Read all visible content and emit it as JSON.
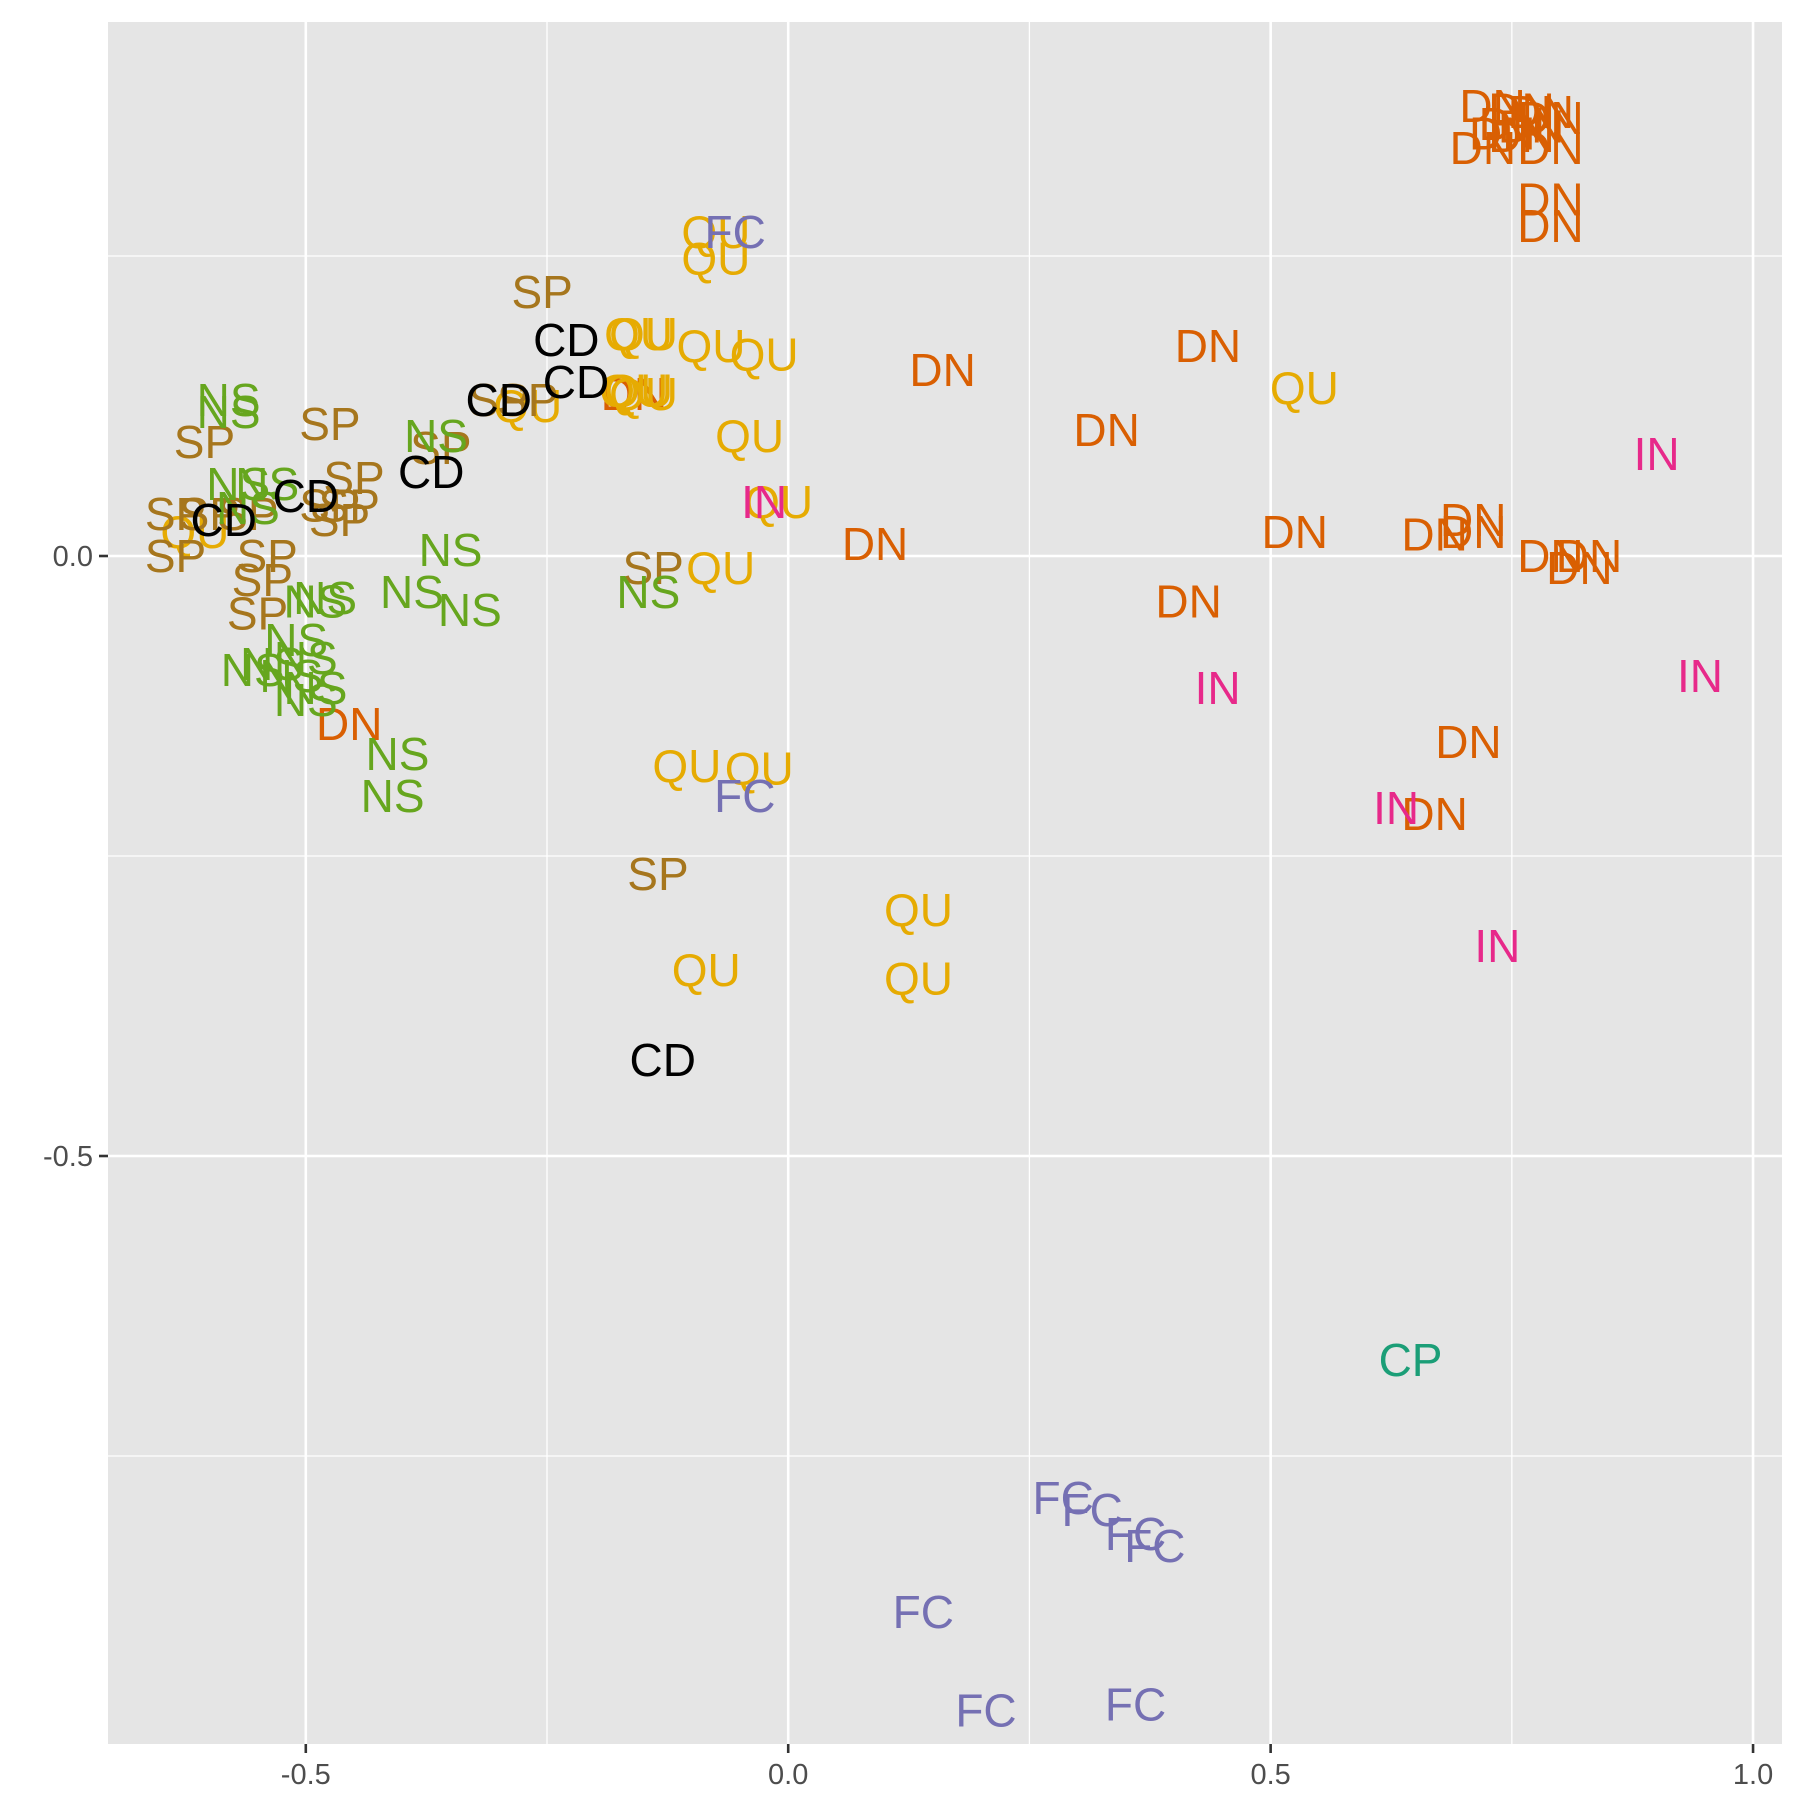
{
  "chart_data": {
    "type": "scatter",
    "title": "",
    "xlabel": "",
    "ylabel": "",
    "xlim": [
      -0.705,
      1.03
    ],
    "ylim": [
      -0.99,
      0.445
    ],
    "x_ticks": [
      -0.5,
      0.0,
      0.5,
      1.0
    ],
    "x_tick_labels": [
      "-0.5",
      "0.0",
      "0.5",
      "1.0"
    ],
    "y_ticks": [
      -0.5,
      0.0
    ],
    "y_tick_labels": [
      "-0.5",
      "0.0"
    ],
    "grid": true,
    "legend": "none",
    "colors": {
      "DN": "#D95F02",
      "QU": "#E6AB02",
      "SP": "#A6761D",
      "NS": "#66A61E",
      "CD": "#000000",
      "FC": "#7570B3",
      "IN": "#E7298A",
      "CP": "#1B9E77"
    },
    "points": [
      {
        "label": "DN",
        "x": 0.73,
        "y": 0.375
      },
      {
        "label": "DN",
        "x": 0.76,
        "y": 0.372
      },
      {
        "label": "DN",
        "x": 0.78,
        "y": 0.37
      },
      {
        "label": "DN",
        "x": 0.79,
        "y": 0.365
      },
      {
        "label": "DN",
        "x": 0.75,
        "y": 0.36
      },
      {
        "label": "DN",
        "x": 0.77,
        "y": 0.358
      },
      {
        "label": "DN",
        "x": 0.74,
        "y": 0.352
      },
      {
        "label": "DN",
        "x": 0.76,
        "y": 0.35
      },
      {
        "label": "DN",
        "x": 0.72,
        "y": 0.34
      },
      {
        "label": "DN",
        "x": 0.79,
        "y": 0.34
      },
      {
        "label": "DN",
        "x": 0.79,
        "y": 0.297
      },
      {
        "label": "DN",
        "x": 0.79,
        "y": 0.275
      },
      {
        "label": "DN",
        "x": 0.16,
        "y": 0.155
      },
      {
        "label": "DN",
        "x": 0.435,
        "y": 0.175
      },
      {
        "label": "DN",
        "x": 0.33,
        "y": 0.105
      },
      {
        "label": "DN",
        "x": 0.525,
        "y": 0.02
      },
      {
        "label": "DN",
        "x": 0.67,
        "y": 0.018
      },
      {
        "label": "DN",
        "x": 0.71,
        "y": 0.02
      },
      {
        "label": "DN",
        "x": 0.71,
        "y": 0.03
      },
      {
        "label": "DN",
        "x": 0.79,
        "y": 0.0
      },
      {
        "label": "DN",
        "x": 0.83,
        "y": 0.0
      },
      {
        "label": "DN",
        "x": 0.82,
        "y": -0.01
      },
      {
        "label": "DN",
        "x": 0.09,
        "y": 0.01
      },
      {
        "label": "DN",
        "x": 0.415,
        "y": -0.038
      },
      {
        "label": "DN",
        "x": -0.455,
        "y": -0.14
      },
      {
        "label": "DN",
        "x": 0.705,
        "y": -0.155
      },
      {
        "label": "DN",
        "x": 0.67,
        "y": -0.215
      },
      {
        "label": "DN",
        "x": -0.16,
        "y": 0.135
      },
      {
        "label": "QU",
        "x": -0.075,
        "y": 0.27
      },
      {
        "label": "QU",
        "x": -0.075,
        "y": 0.248
      },
      {
        "label": "QU",
        "x": -0.155,
        "y": 0.185
      },
      {
        "label": "QU",
        "x": -0.15,
        "y": 0.185
      },
      {
        "label": "QU",
        "x": -0.08,
        "y": 0.175
      },
      {
        "label": "QU",
        "x": -0.025,
        "y": 0.168
      },
      {
        "label": "QU",
        "x": -0.16,
        "y": 0.138
      },
      {
        "label": "QU",
        "x": -0.155,
        "y": 0.138
      },
      {
        "label": "QU",
        "x": -0.15,
        "y": 0.135
      },
      {
        "label": "QU",
        "x": -0.27,
        "y": 0.125
      },
      {
        "label": "QU",
        "x": -0.04,
        "y": 0.1
      },
      {
        "label": "QU",
        "x": 0.535,
        "y": 0.14
      },
      {
        "label": "QU",
        "x": -0.01,
        "y": 0.045
      },
      {
        "label": "QU",
        "x": -0.07,
        "y": -0.01
      },
      {
        "label": "QU",
        "x": -0.615,
        "y": 0.02
      },
      {
        "label": "QU",
        "x": -0.105,
        "y": -0.175
      },
      {
        "label": "QU",
        "x": -0.03,
        "y": -0.177
      },
      {
        "label": "QU",
        "x": 0.135,
        "y": -0.295
      },
      {
        "label": "QU",
        "x": -0.085,
        "y": -0.345
      },
      {
        "label": "QU",
        "x": 0.135,
        "y": -0.352
      },
      {
        "label": "SP",
        "x": -0.255,
        "y": 0.22
      },
      {
        "label": "SP",
        "x": -0.475,
        "y": 0.11
      },
      {
        "label": "SP",
        "x": -0.605,
        "y": 0.095
      },
      {
        "label": "SP",
        "x": -0.3,
        "y": 0.13
      },
      {
        "label": "SP",
        "x": -0.27,
        "y": 0.13
      },
      {
        "label": "SP",
        "x": -0.45,
        "y": 0.065
      },
      {
        "label": "SP",
        "x": -0.36,
        "y": 0.09
      },
      {
        "label": "SP",
        "x": -0.635,
        "y": 0.035
      },
      {
        "label": "SP",
        "x": -0.6,
        "y": 0.035
      },
      {
        "label": "SP",
        "x": -0.56,
        "y": 0.035
      },
      {
        "label": "SP",
        "x": -0.475,
        "y": 0.042
      },
      {
        "label": "SP",
        "x": -0.455,
        "y": 0.042
      },
      {
        "label": "SP",
        "x": -0.465,
        "y": 0.03
      },
      {
        "label": "SP",
        "x": -0.635,
        "y": 0.0
      },
      {
        "label": "SP",
        "x": -0.54,
        "y": 0.0
      },
      {
        "label": "SP",
        "x": -0.545,
        "y": -0.02
      },
      {
        "label": "SP",
        "x": -0.55,
        "y": -0.048
      },
      {
        "label": "SP",
        "x": -0.14,
        "y": -0.01
      },
      {
        "label": "SP",
        "x": -0.135,
        "y": -0.265
      },
      {
        "label": "NS",
        "x": -0.58,
        "y": 0.13
      },
      {
        "label": "NS",
        "x": -0.58,
        "y": 0.12
      },
      {
        "label": "NS",
        "x": -0.365,
        "y": 0.1
      },
      {
        "label": "NS",
        "x": -0.57,
        "y": 0.06
      },
      {
        "label": "NS",
        "x": -0.54,
        "y": 0.06
      },
      {
        "label": "NS",
        "x": -0.56,
        "y": 0.04
      },
      {
        "label": "NS",
        "x": -0.35,
        "y": 0.005
      },
      {
        "label": "NS",
        "x": -0.39,
        "y": -0.03
      },
      {
        "label": "NS",
        "x": -0.33,
        "y": -0.045
      },
      {
        "label": "NS",
        "x": -0.49,
        "y": -0.038
      },
      {
        "label": "NS",
        "x": -0.48,
        "y": -0.035
      },
      {
        "label": "NS",
        "x": -0.145,
        "y": -0.03
      },
      {
        "label": "NS",
        "x": -0.51,
        "y": -0.07
      },
      {
        "label": "NS",
        "x": -0.5,
        "y": -0.085
      },
      {
        "label": "NS",
        "x": -0.535,
        "y": -0.09
      },
      {
        "label": "NS",
        "x": -0.515,
        "y": -0.1
      },
      {
        "label": "NS",
        "x": -0.555,
        "y": -0.095
      },
      {
        "label": "NS",
        "x": -0.49,
        "y": -0.11
      },
      {
        "label": "NS",
        "x": -0.5,
        "y": -0.12
      },
      {
        "label": "NS",
        "x": -0.405,
        "y": -0.165
      },
      {
        "label": "NS",
        "x": -0.41,
        "y": -0.2
      },
      {
        "label": "CD",
        "x": -0.23,
        "y": 0.18
      },
      {
        "label": "CD",
        "x": -0.22,
        "y": 0.145
      },
      {
        "label": "CD",
        "x": -0.3,
        "y": 0.13
      },
      {
        "label": "CD",
        "x": -0.37,
        "y": 0.07
      },
      {
        "label": "CD",
        "x": -0.5,
        "y": 0.05
      },
      {
        "label": "CD",
        "x": -0.585,
        "y": 0.03
      },
      {
        "label": "CD",
        "x": -0.13,
        "y": -0.42
      },
      {
        "label": "FC",
        "x": -0.055,
        "y": 0.27
      },
      {
        "label": "FC",
        "x": -0.045,
        "y": -0.2
      },
      {
        "label": "FC",
        "x": 0.285,
        "y": -0.785
      },
      {
        "label": "FC",
        "x": 0.315,
        "y": -0.795
      },
      {
        "label": "FC",
        "x": 0.36,
        "y": -0.815
      },
      {
        "label": "FC",
        "x": 0.38,
        "y": -0.825
      },
      {
        "label": "FC",
        "x": 0.14,
        "y": -0.88
      },
      {
        "label": "FC",
        "x": 0.205,
        "y": -0.962
      },
      {
        "label": "FC",
        "x": 0.36,
        "y": -0.957
      },
      {
        "label": "IN",
        "x": 0.9,
        "y": 0.085
      },
      {
        "label": "IN",
        "x": -0.025,
        "y": 0.045
      },
      {
        "label": "IN",
        "x": 0.445,
        "y": -0.11
      },
      {
        "label": "IN",
        "x": 0.945,
        "y": -0.1
      },
      {
        "label": "IN",
        "x": 0.63,
        "y": -0.21
      },
      {
        "label": "IN",
        "x": 0.735,
        "y": -0.325
      },
      {
        "label": "CP",
        "x": 0.645,
        "y": -0.67
      }
    ]
  }
}
